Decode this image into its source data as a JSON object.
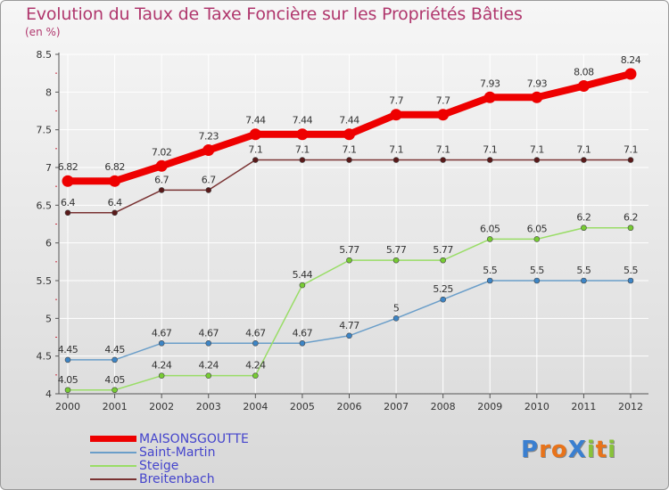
{
  "title": "Evolution du Taux de Taxe Foncière sur les Propriétés Bâties",
  "subtitle": "(en %)",
  "logo": "ProXiti",
  "colors": {
    "title": "#b0376d",
    "grid": "#ffffff",
    "axis": "#555555",
    "tick_red": "#cc3344"
  },
  "chart_data": {
    "type": "line",
    "x": [
      "2000",
      "2001",
      "2002",
      "2003",
      "2004",
      "2005",
      "2006",
      "2007",
      "2008",
      "2009",
      "2010",
      "2011",
      "2012"
    ],
    "ylim": [
      4,
      8.5
    ],
    "yticks": [
      "4",
      "4.5",
      "5",
      "5.5",
      "6",
      "6.5",
      "7",
      "7.5",
      "8",
      "8.5"
    ],
    "series": [
      {
        "name": "MAISONSGOUTTE",
        "color": "#ee0000",
        "marker": "#ee0000",
        "width": 8,
        "label_color": "#333333",
        "values": [
          6.82,
          6.82,
          7.02,
          7.23,
          7.44,
          7.44,
          7.44,
          7.7,
          7.7,
          7.93,
          7.93,
          8.08,
          8.24
        ],
        "labels": [
          "6.82",
          "6.82",
          "7.02",
          "7.23",
          "7.44",
          "7.44",
          "7.44",
          "7.7",
          "7.7",
          "7.93",
          "7.93",
          "8.08",
          "8.24"
        ]
      },
      {
        "name": "Saint-Martin",
        "color": "#6a9ec9",
        "marker": "#3d85c6",
        "width": 1.5,
        "label_color": "#333333",
        "values": [
          4.45,
          4.45,
          4.67,
          4.67,
          4.67,
          4.67,
          4.77,
          5,
          5.25,
          5.5,
          5.5,
          5.5,
          5.5
        ],
        "labels": [
          "4.45",
          "4.45",
          "4.67",
          "4.67",
          "4.67",
          "4.67",
          "4.77",
          "5",
          "5.25",
          "5.5",
          "5.5",
          "5.5",
          "5.5"
        ]
      },
      {
        "name": "Steige",
        "color": "#99dd66",
        "marker": "#77cc33",
        "width": 1.5,
        "label_color": "#333333",
        "values": [
          4.05,
          4.05,
          4.24,
          4.24,
          4.24,
          5.44,
          5.77,
          5.77,
          5.77,
          6.05,
          6.05,
          6.2,
          6.2
        ],
        "labels": [
          "4.05",
          "4.05",
          "4.24",
          "4.24",
          "4.24",
          "5.44",
          "5.77",
          "5.77",
          "5.77",
          "6.05",
          "6.05",
          "6.2",
          "6.2"
        ]
      },
      {
        "name": "Breitenbach",
        "color": "#7a3333",
        "marker": "#5a1a1a",
        "width": 1.5,
        "label_color": "#333333",
        "values": [
          6.4,
          6.4,
          6.7,
          6.7,
          7.1,
          7.1,
          7.1,
          7.1,
          7.1,
          7.1,
          7.1,
          7.1,
          7.1
        ],
        "labels": [
          "6.4",
          "6.4",
          "6.7",
          "6.7",
          "7.1",
          "7.1",
          "7.1",
          "7.1",
          "7.1",
          "7.1",
          "7.1",
          "7.1",
          "7.1"
        ]
      }
    ],
    "legend": [
      "MAISONSGOUTTE",
      "Saint-Martin",
      "Steige",
      "Breitenbach"
    ],
    "legend_text_color": "#4444cc",
    "grid": true
  }
}
